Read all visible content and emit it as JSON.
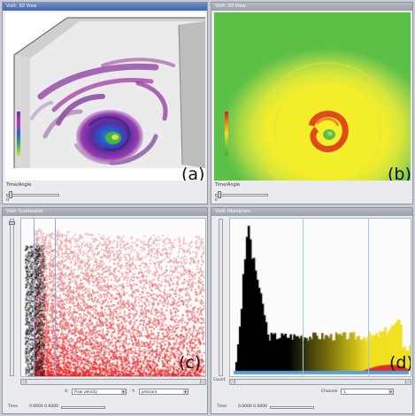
{
  "panels": {
    "a": {
      "title": "VisIt: 3D View",
      "tag": "(a)",
      "slider_label": "Time/Angle",
      "slider_value": "0"
    },
    "b": {
      "title": "VisIt: 2D View",
      "tag": "(b)",
      "slider_label": "Time/Angle",
      "slider_value": "0"
    },
    "c": {
      "title": "VisIt: Scatterplot",
      "tag": "(c)",
      "x_label": "X:",
      "x_value": "Flow velocity",
      "y_label": "Y:",
      "y_value": "pressure",
      "time_label": "Time",
      "time_range": "0.0000  0.0000"
    },
    "d": {
      "title": "VisIt: Histogram",
      "tag": "(d)",
      "count_label": "Count",
      "channel_label": "Channel",
      "channel_value": "1",
      "time_label": "Time",
      "time_range": "0.0000  0.0000"
    }
  },
  "colors": {
    "active_title": "#4466a8",
    "scatter_red": "#e01818",
    "hist_yellow": "#f0e020",
    "field_green": "#5cc040",
    "field_yellow": "#f4ee30"
  },
  "icons": [
    "scroll-left-icon",
    "scroll-right-icon",
    "dropdown-arrow-icon"
  ]
}
